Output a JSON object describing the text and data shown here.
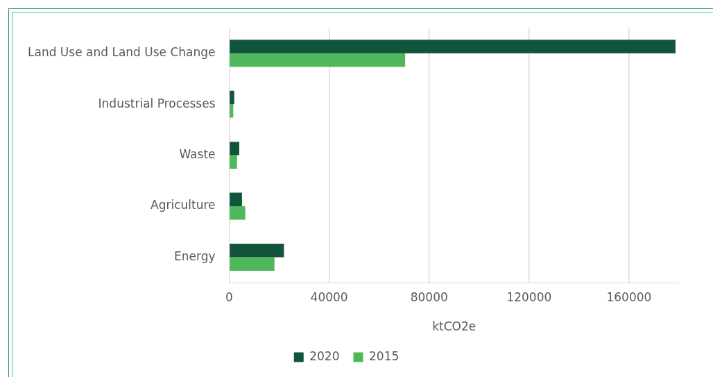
{
  "chart_data": {
    "type": "bar",
    "orientation": "horizontal",
    "categories": [
      "Land Use and Land Use Change",
      "Industrial Processes",
      "Waste",
      "Agriculture",
      "Energy"
    ],
    "series": [
      {
        "name": "2020",
        "color": "#12543a",
        "values": [
          178600,
          2000,
          4000,
          5100,
          21900
        ]
      },
      {
        "name": "2015",
        "color": "#4fb85a",
        "values": [
          70400,
          1600,
          3100,
          6400,
          18100
        ]
      }
    ],
    "xlabel": "ktCO2e",
    "xlim": [
      0,
      180000
    ],
    "xticks": [
      0,
      40000,
      80000,
      120000,
      160000
    ],
    "grid": "x",
    "legend": "bottom"
  }
}
